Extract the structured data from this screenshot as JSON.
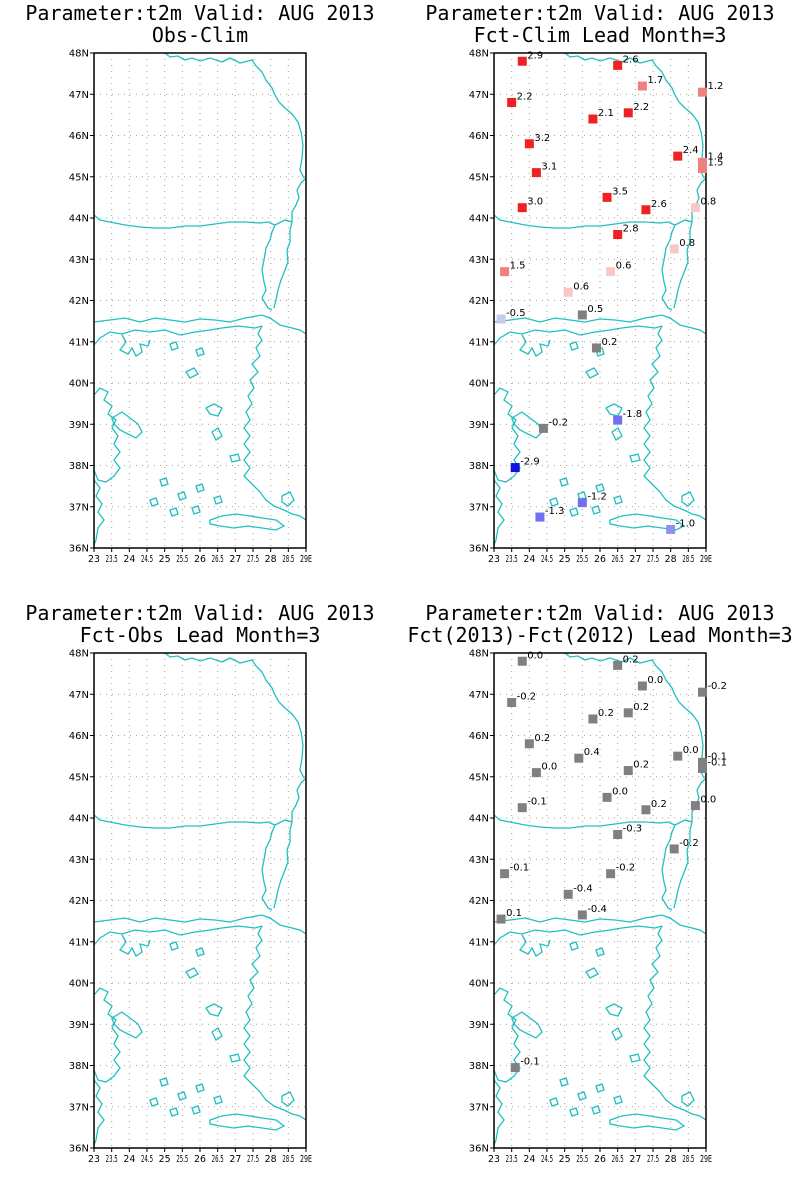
{
  "map_extent": {
    "lon": [
      23,
      29
    ],
    "lat": [
      36,
      48
    ]
  },
  "lat_tick_labels": [
    "36N",
    "37N",
    "38N",
    "39N",
    "40N",
    "41N",
    "42N",
    "43N",
    "44N",
    "45N",
    "46N",
    "47N",
    "48N"
  ],
  "lon_tick_labels": [
    "23",
    "23.5",
    "24",
    "24.5",
    "25",
    "25.5",
    "26",
    "26.5",
    "27",
    "27.5",
    "28",
    "28.5",
    "29E"
  ],
  "colors": {
    "coast": "#20c0c0",
    "grid": "#a0a0a0",
    "neutral": "#808080"
  },
  "panels": [
    {
      "title_line1": "Parameter:t2m Valid: AUG 2013",
      "title_line2": "Obs-Clim",
      "stations": []
    },
    {
      "title_line1": "Parameter:t2m Valid: AUG 2013",
      "title_line2": "Fct-Clim Lead Month=3",
      "stations": [
        {
          "lon": 23.8,
          "lat": 47.8,
          "label": "2.9",
          "color": "#ee2222"
        },
        {
          "lon": 26.5,
          "lat": 47.7,
          "label": "2.6",
          "color": "#ee2222"
        },
        {
          "lon": 27.2,
          "lat": 47.2,
          "label": "1.7",
          "color": "#f08080"
        },
        {
          "lon": 28.9,
          "lat": 47.05,
          "label": "1.2",
          "color": "#f08080"
        },
        {
          "lon": 23.5,
          "lat": 46.8,
          "label": "2.2",
          "color": "#ee2222"
        },
        {
          "lon": 25.8,
          "lat": 46.4,
          "label": "2.1",
          "color": "#ee2222"
        },
        {
          "lon": 26.8,
          "lat": 46.55,
          "label": "2.2",
          "color": "#ee2222"
        },
        {
          "lon": 24.0,
          "lat": 45.8,
          "label": "3.2",
          "color": "#ee2222"
        },
        {
          "lon": 28.2,
          "lat": 45.5,
          "label": "2.4",
          "color": "#ee2222"
        },
        {
          "lon": 28.9,
          "lat": 45.35,
          "label": "1.4",
          "color": "#f08080"
        },
        {
          "lon": 28.9,
          "lat": 45.2,
          "label": "1.5",
          "color": "#f08080"
        },
        {
          "lon": 24.2,
          "lat": 45.1,
          "label": "3.1",
          "color": "#ee2222"
        },
        {
          "lon": 26.2,
          "lat": 44.5,
          "label": "3.5",
          "color": "#ee2222"
        },
        {
          "lon": 23.8,
          "lat": 44.25,
          "label": "3.0",
          "color": "#ee2222"
        },
        {
          "lon": 27.3,
          "lat": 44.2,
          "label": "2.6",
          "color": "#ee2222"
        },
        {
          "lon": 28.7,
          "lat": 44.25,
          "label": "0.8",
          "color": "#f8c8c8"
        },
        {
          "lon": 26.5,
          "lat": 43.6,
          "label": "2.8",
          "color": "#ee2222"
        },
        {
          "lon": 28.1,
          "lat": 43.25,
          "label": "0.8",
          "color": "#f8c8c8"
        },
        {
          "lon": 23.3,
          "lat": 42.7,
          "label": "1.5",
          "color": "#f08080"
        },
        {
          "lon": 26.3,
          "lat": 42.7,
          "label": "0.6",
          "color": "#f8c8c8"
        },
        {
          "lon": 25.1,
          "lat": 42.2,
          "label": "0.6",
          "color": "#f8c8c8"
        },
        {
          "lon": 23.2,
          "lat": 41.55,
          "label": "-0.5",
          "color": "#c8c8f0"
        },
        {
          "lon": 25.5,
          "lat": 41.65,
          "label": "0.5",
          "color": "#808080"
        },
        {
          "lon": 25.9,
          "lat": 40.85,
          "label": "0.2",
          "color": "#808080"
        },
        {
          "lon": 24.4,
          "lat": 38.9,
          "label": "-0.2",
          "color": "#808080"
        },
        {
          "lon": 26.5,
          "lat": 39.1,
          "label": "-1.8",
          "color": "#7070f0"
        },
        {
          "lon": 23.6,
          "lat": 37.95,
          "label": "-2.9",
          "color": "#1010e0"
        },
        {
          "lon": 25.5,
          "lat": 37.1,
          "label": "-1.2",
          "color": "#7070f0"
        },
        {
          "lon": 24.3,
          "lat": 36.75,
          "label": "-1.3",
          "color": "#7070f0"
        },
        {
          "lon": 28.0,
          "lat": 36.45,
          "label": "-1.0",
          "color": "#9090f0"
        }
      ]
    },
    {
      "title_line1": "Parameter:t2m Valid: AUG 2013",
      "title_line2": "Fct-Obs Lead Month=3",
      "stations": []
    },
    {
      "title_line1": "Parameter:t2m Valid: AUG 2013",
      "title_line2": "Fct(2013)-Fct(2012) Lead Month=3",
      "stations": [
        {
          "lon": 23.8,
          "lat": 47.8,
          "label": "0.0",
          "color": "#808080"
        },
        {
          "lon": 26.5,
          "lat": 47.7,
          "label": "0.2",
          "color": "#808080"
        },
        {
          "lon": 27.2,
          "lat": 47.2,
          "label": "0.0",
          "color": "#808080"
        },
        {
          "lon": 28.9,
          "lat": 47.05,
          "label": "-0.2",
          "color": "#808080"
        },
        {
          "lon": 23.5,
          "lat": 46.8,
          "label": "-0.2",
          "color": "#808080"
        },
        {
          "lon": 25.8,
          "lat": 46.4,
          "label": "0.2",
          "color": "#808080"
        },
        {
          "lon": 26.8,
          "lat": 46.55,
          "label": "0.2",
          "color": "#808080"
        },
        {
          "lon": 24.0,
          "lat": 45.8,
          "label": "0.2",
          "color": "#808080"
        },
        {
          "lon": 25.4,
          "lat": 45.45,
          "label": "0.4",
          "color": "#808080"
        },
        {
          "lon": 28.2,
          "lat": 45.5,
          "label": "0.0",
          "color": "#808080"
        },
        {
          "lon": 28.9,
          "lat": 45.35,
          "label": "-0.1",
          "color": "#808080"
        },
        {
          "lon": 28.9,
          "lat": 45.2,
          "label": "-0.1",
          "color": "#808080"
        },
        {
          "lon": 24.2,
          "lat": 45.1,
          "label": "0.0",
          "color": "#808080"
        },
        {
          "lon": 26.8,
          "lat": 45.15,
          "label": "0.2",
          "color": "#808080"
        },
        {
          "lon": 26.2,
          "lat": 44.5,
          "label": "0.0",
          "color": "#808080"
        },
        {
          "lon": 23.8,
          "lat": 44.25,
          "label": "-0.1",
          "color": "#808080"
        },
        {
          "lon": 27.3,
          "lat": 44.2,
          "label": "0.2",
          "color": "#808080"
        },
        {
          "lon": 28.7,
          "lat": 44.3,
          "label": "0.0",
          "color": "#808080"
        },
        {
          "lon": 26.5,
          "lat": 43.6,
          "label": "-0.3",
          "color": "#808080"
        },
        {
          "lon": 28.1,
          "lat": 43.25,
          "label": "-0.2",
          "color": "#808080"
        },
        {
          "lon": 23.3,
          "lat": 42.65,
          "label": "-0.1",
          "color": "#808080"
        },
        {
          "lon": 26.3,
          "lat": 42.65,
          "label": "-0.2",
          "color": "#808080"
        },
        {
          "lon": 25.1,
          "lat": 42.15,
          "label": "-0.4",
          "color": "#808080"
        },
        {
          "lon": 23.2,
          "lat": 41.55,
          "label": "0.1",
          "color": "#808080"
        },
        {
          "lon": 25.5,
          "lat": 41.65,
          "label": "-0.4",
          "color": "#808080"
        },
        {
          "lon": 23.6,
          "lat": 37.95,
          "label": "-0.1",
          "color": "#808080"
        }
      ]
    }
  ]
}
